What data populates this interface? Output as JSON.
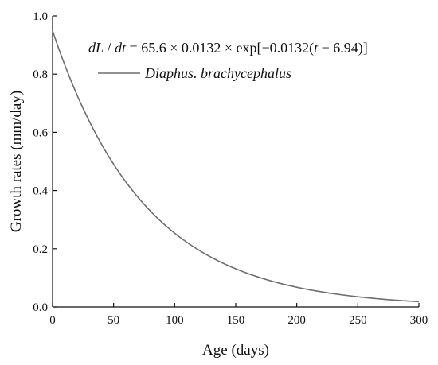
{
  "chart_data": {
    "type": "line",
    "xlabel": "Age (days)",
    "ylabel": "Growth rates (mm/day)",
    "xlim": [
      0,
      300
    ],
    "ylim": [
      0,
      1.0
    ],
    "x_ticks": [
      "0",
      "50",
      "100",
      "150",
      "200",
      "250",
      "300"
    ],
    "y_ticks": [
      "0.0",
      "0.2",
      "0.4",
      "0.6",
      "0.8",
      "1.0"
    ],
    "grid": false,
    "legend_position": "top",
    "equation": {
      "lhs_d1": "dL",
      "slash": " / ",
      "lhs_d2": "dt",
      "rhs_1": " = 65.6 × 0.0132 × exp[−0.0132(",
      "var_t": "t",
      "rhs_2": " − 6.94)]"
    },
    "model": {
      "L_inf": 65.6,
      "k": 0.0132,
      "t0": 6.94
    },
    "colors": {
      "series": "#6e6e6e",
      "axis": "#111111"
    },
    "series": [
      {
        "name": "Diaphus. brachycephalus",
        "x": [
          0,
          10,
          20,
          30,
          40,
          50,
          60,
          70,
          80,
          90,
          100,
          110,
          120,
          130,
          140,
          150,
          160,
          170,
          180,
          190,
          200,
          210,
          220,
          230,
          240,
          250,
          260,
          270,
          280,
          290,
          300
        ],
        "y": [
          0.947,
          0.83,
          0.727,
          0.638,
          0.559,
          0.49,
          0.429,
          0.376,
          0.33,
          0.289,
          0.253,
          0.222,
          0.195,
          0.171,
          0.149,
          0.131,
          0.115,
          0.101,
          0.088,
          0.077,
          0.068,
          0.059,
          0.052,
          0.046,
          0.04,
          0.035,
          0.031,
          0.027,
          0.024,
          0.021,
          0.018
        ]
      }
    ]
  }
}
